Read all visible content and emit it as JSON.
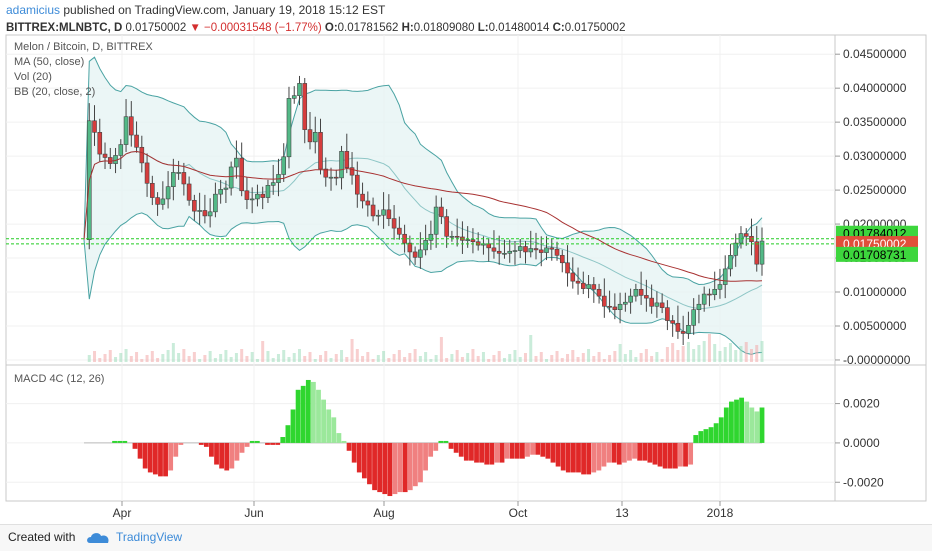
{
  "header": {
    "author": "adamicius",
    "published": "published on TradingView.com, January 19, 2018 15:12 EST",
    "symbol": "BITTREX:MLNBTC, D",
    "price": "0.01750002",
    "change": "▼ −0.00031548 (−1.77%)",
    "o_label": "O:",
    "o": "0.01781562",
    "h_label": "H:",
    "h": "0.01809080",
    "l_label": "L:",
    "l": "0.01480014",
    "c_label": "C:",
    "c": "0.01750002"
  },
  "legend": {
    "title": "Melon / Bitcoin, D, BITTREX",
    "ma": "MA (50, close)",
    "vol": "Vol (20)",
    "bb": "BB (20, close, 2)",
    "macd": "MACD 4C (12, 26)"
  },
  "footer": {
    "created": "Created with",
    "brand": "TradingView"
  },
  "colors": {
    "up": "#53b987",
    "down": "#d63d3d",
    "upBar": "#7ddb87",
    "downBar": "#ef4545",
    "ma": "#a83232",
    "bb": "#4aa3a3",
    "tag": "#3dd63d",
    "price_tag": "#e0503a"
  },
  "chart_data": [
    {
      "type": "candlestick",
      "title": "Melon / Bitcoin, D, BITTREX",
      "x_ticks": [
        "Apr",
        "Jun",
        "Aug",
        "Oct",
        "13",
        "2018"
      ],
      "y_ticks": [
        "0.04500000",
        "0.04000000",
        "0.03500000",
        "0.03000000",
        "0.02500000",
        "0.02000000",
        "0.01500000",
        "0.01000000",
        "0.00500000",
        "-0.00000000"
      ],
      "ylim": [
        -0.0003,
        0.0465
      ],
      "price_tags": {
        "upper": "0.01784012",
        "last": "0.01750002",
        "lower": "0.01708731"
      },
      "series_close": [
        0.0177,
        0.0352,
        0.0335,
        0.0303,
        0.0298,
        0.0289,
        0.0301,
        0.0317,
        0.0358,
        0.0331,
        0.0313,
        0.029,
        0.026,
        0.0239,
        0.0229,
        0.0237,
        0.0255,
        0.0276,
        0.0276,
        0.0259,
        0.0235,
        0.0219,
        0.022,
        0.0212,
        0.0218,
        0.0244,
        0.0251,
        0.0253,
        0.0284,
        0.0297,
        0.0249,
        0.0236,
        0.0237,
        0.0244,
        0.0239,
        0.0257,
        0.0261,
        0.0273,
        0.0299,
        0.0385,
        0.0389,
        0.0407,
        0.0339,
        0.0321,
        0.0335,
        0.0281,
        0.0269,
        0.0269,
        0.0268,
        0.0307,
        0.0283,
        0.0272,
        0.0244,
        0.0234,
        0.0228,
        0.0212,
        0.0213,
        0.0221,
        0.0208,
        0.0194,
        0.0185,
        0.0172,
        0.0159,
        0.0151,
        0.0162,
        0.0176,
        0.0185,
        0.0225,
        0.0211,
        0.0182,
        0.0182,
        0.0181,
        0.0176,
        0.0177,
        0.0174,
        0.0169,
        0.0171,
        0.0165,
        0.016,
        0.0157,
        0.0157,
        0.016,
        0.0161,
        0.0167,
        0.0159,
        0.0164,
        0.0162,
        0.0158,
        0.0165,
        0.0163,
        0.0154,
        0.0143,
        0.0128,
        0.0116,
        0.0113,
        0.0105,
        0.0111,
        0.0104,
        0.0094,
        0.0079,
        0.0078,
        0.0074,
        0.0082,
        0.0085,
        0.0094,
        0.0104,
        0.0095,
        0.0091,
        0.0079,
        0.0084,
        0.0077,
        0.0058,
        0.0054,
        0.0042,
        0.0039,
        0.0051,
        0.0074,
        0.0082,
        0.0097,
        0.0096,
        0.0104,
        0.0111,
        0.0134,
        0.0154,
        0.0172,
        0.0186,
        0.0182,
        0.0174,
        0.0141,
        0.0175
      ],
      "series_volume": [
        0,
        250,
        0,
        0,
        200,
        0,
        0,
        0,
        0,
        0,
        0,
        0,
        0,
        0,
        0,
        0,
        0,
        0,
        0,
        0,
        0,
        0,
        0,
        0,
        0,
        0,
        0,
        0,
        0,
        0,
        0,
        0,
        0,
        0,
        0,
        0,
        0,
        0,
        0,
        0,
        0,
        0,
        0,
        0,
        0,
        0,
        0,
        0,
        0,
        0,
        0,
        0,
        0,
        0,
        0,
        0,
        0,
        0,
        0,
        0,
        0,
        0,
        0,
        0,
        0,
        0,
        0,
        0,
        0,
        0,
        0,
        0,
        0,
        0,
        0,
        0,
        0,
        0,
        0,
        0,
        0,
        0,
        0,
        0,
        0,
        0,
        0,
        0,
        0,
        0,
        0,
        0,
        0,
        0,
        0,
        0,
        0,
        0,
        0,
        0,
        0,
        0,
        0,
        0,
        0,
        0,
        0,
        0,
        0,
        0,
        0,
        0,
        0,
        0,
        0,
        0,
        0,
        0,
        0,
        0,
        0,
        0,
        0,
        0,
        0,
        0,
        0,
        0,
        0,
        0,
        0,
        0
      ]
    },
    {
      "type": "bar",
      "title": "MACD 4C (12, 26)",
      "y_ticks": [
        "0.0020",
        "0.0000",
        "-0.0020"
      ],
      "ylim": [
        -0.0028,
        0.0033
      ],
      "values": [
        0,
        0,
        0,
        0,
        0,
        0,
        0.0001,
        0.0001,
        0.0001,
        0,
        -0.0003,
        -0.0008,
        -0.0013,
        -0.0015,
        -0.0016,
        -0.0017,
        -0.0017,
        -0.0014,
        -0.0007,
        -0.0001,
        0,
        0,
        0,
        -0.0001,
        -0.0002,
        -0.0007,
        -0.0011,
        -0.0013,
        -0.0014,
        -0.0013,
        -0.0009,
        -0.0005,
        -0.0002,
        0.0001,
        0.0001,
        0.0,
        -0.0001,
        -0.0001,
        -0.0001,
        0.0003,
        0.0009,
        0.0017,
        0.0027,
        0.0029,
        0.0032,
        0.0031,
        0.0027,
        0.0022,
        0.0017,
        0.0013,
        0.0005,
        0.0001,
        -0.0004,
        -0.001,
        -0.0015,
        -0.0018,
        -0.0021,
        -0.0024,
        -0.0025,
        -0.0026,
        -0.0027,
        -0.0026,
        -0.0025,
        -0.0025,
        -0.0024,
        -0.0022,
        -0.002,
        -0.0014,
        -0.0007,
        -0.0004,
        0.0001,
        0.0001,
        -0.0003,
        -0.0005,
        -0.0007,
        -0.0009,
        -0.0009,
        -0.001,
        -0.001,
        -0.0011,
        -0.0011,
        -0.001,
        -0.001,
        -0.0008,
        -0.0008,
        -0.0008,
        -0.0008,
        -0.0007,
        -0.0006,
        -0.0006,
        -0.0007,
        -0.0008,
        -0.001,
        -0.0012,
        -0.0014,
        -0.0015,
        -0.0015,
        -0.0015,
        -0.0016,
        -0.0016,
        -0.0015,
        -0.0014,
        -0.0012,
        -0.001,
        -0.001,
        -0.0011,
        -0.001,
        -0.0009,
        -0.0008,
        -0.0009,
        -0.0009,
        -0.001,
        -0.0011,
        -0.0012,
        -0.0013,
        -0.0013,
        -0.0013,
        -0.0012,
        -0.0012,
        -0.0011,
        0.0004,
        0.0006,
        0.0007,
        0.0008,
        0.001,
        0.0013,
        0.0018,
        0.0021,
        0.0022,
        0.0023,
        0.0021,
        0.0018,
        0.0016,
        0.0018
      ]
    }
  ]
}
